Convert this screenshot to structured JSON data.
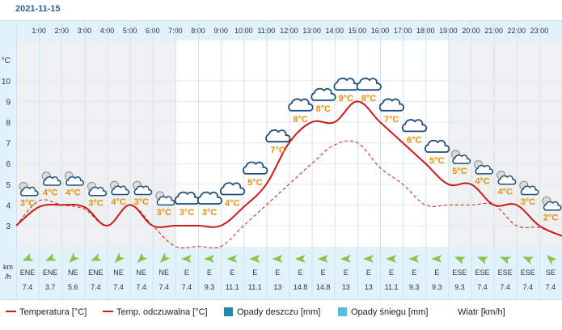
{
  "date": "2021-11-15",
  "units": {
    "temp": "°C",
    "wind": "km\n/h"
  },
  "colors": {
    "temp_line": "#cc1a1a",
    "feels_line": "#cc1a1a",
    "temp_label": "#e8900a",
    "rain": "#1a8ab8",
    "snow": "#58bfd8",
    "wind_arrow": "#8bc34a",
    "night_bg": "#eef0f2"
  },
  "chart_data": {
    "type": "line",
    "hours": [
      "1:00",
      "2:00",
      "3:00",
      "4:00",
      "5:00",
      "6:00",
      "7:00",
      "8:00",
      "9:00",
      "10:00",
      "11:00",
      "12:00",
      "13:00",
      "14:00",
      "15:00",
      "16:00",
      "17:00",
      "18:00",
      "19:00",
      "20:00",
      "21:00",
      "22:00",
      "23:00"
    ],
    "y_ticks": [
      3,
      4,
      5,
      6,
      7,
      8,
      9,
      10
    ],
    "ylim": [
      2,
      11
    ],
    "series": [
      {
        "name": "Temperatura [°C]",
        "x": [
          0,
          1,
          2,
          3,
          4,
          5,
          6,
          7,
          8,
          9,
          10,
          11,
          12,
          13,
          14,
          15,
          16,
          17,
          18,
          19,
          20,
          21,
          22,
          23,
          24
        ],
        "values": [
          3,
          3.9,
          4,
          3.9,
          3,
          4,
          3,
          3,
          3,
          3,
          3.9,
          5,
          7,
          8,
          8,
          9,
          8,
          7,
          6,
          5,
          5,
          4,
          4,
          3,
          2.5
        ]
      },
      {
        "name": "Temp. odczuwalna [°C]",
        "x": [
          0,
          1,
          2,
          3,
          4,
          5,
          6,
          7,
          8,
          9,
          10,
          11,
          12,
          13,
          14,
          15,
          16,
          17,
          18,
          19,
          20,
          21,
          22,
          23,
          24
        ],
        "values": [
          3,
          4.2,
          4,
          3.8,
          3,
          4,
          3,
          2,
          2,
          2,
          3,
          4,
          5,
          6,
          6.9,
          7,
          5.8,
          5,
          4,
          4,
          4,
          4,
          3,
          2.9,
          2.5
        ]
      }
    ],
    "temp_labels": [
      {
        "x": 0.5,
        "text": "3°C"
      },
      {
        "x": 1.5,
        "text": "4°C"
      },
      {
        "x": 2.5,
        "text": "4°C"
      },
      {
        "x": 3.5,
        "text": "3°C"
      },
      {
        "x": 4.5,
        "text": "4°C"
      },
      {
        "x": 5.5,
        "text": "3°C"
      },
      {
        "x": 6.5,
        "text": "3°C"
      },
      {
        "x": 7.5,
        "text": "3°C"
      },
      {
        "x": 8.5,
        "text": "3°C"
      },
      {
        "x": 9.5,
        "text": "4°C"
      },
      {
        "x": 10.5,
        "text": "5°C"
      },
      {
        "x": 11.5,
        "text": "7°C"
      },
      {
        "x": 12.5,
        "text": "8°C"
      },
      {
        "x": 13.5,
        "text": "8°C"
      },
      {
        "x": 14.5,
        "text": "9°C"
      },
      {
        "x": 15.5,
        "text": "8°C"
      },
      {
        "x": 16.5,
        "text": "7°C"
      },
      {
        "x": 17.5,
        "text": "6°C"
      },
      {
        "x": 18.5,
        "text": "5°C"
      },
      {
        "x": 19.5,
        "text": "5°C"
      },
      {
        "x": 20.5,
        "text": "4°C"
      },
      {
        "x": 21.5,
        "text": "4°C"
      },
      {
        "x": 22.5,
        "text": "3°C"
      },
      {
        "x": 23.5,
        "text": "2°C"
      }
    ],
    "weather_icons": [
      "night-partly-cloudy",
      "night-partly-cloudy",
      "night-partly-cloudy",
      "night-partly-cloudy",
      "night-partly-cloudy",
      "night-partly-cloudy",
      "night-partly-cloudy",
      "cloudy",
      "cloudy",
      "cloudy",
      "cloudy",
      "cloudy",
      "cloudy",
      "cloudy",
      "cloudy",
      "cloudy",
      "cloudy",
      "cloudy",
      "cloudy",
      "night-partly-cloudy",
      "night-partly-cloudy",
      "night-partly-cloudy",
      "night-partly-cloudy",
      "night-partly-cloudy"
    ],
    "night_columns": [
      0,
      1,
      2,
      3,
      4,
      5,
      6,
      19,
      20,
      21,
      22,
      23
    ],
    "wind_dir": [
      "ENE",
      "ENE",
      "NE",
      "ENE",
      "NE",
      "NE",
      "NE",
      "E",
      "E",
      "E",
      "E",
      "E",
      "E",
      "E",
      "E",
      "E",
      "E",
      "E",
      "E",
      "ESE",
      "ESE",
      "ESE",
      "ESE",
      "SE"
    ],
    "wind_speed": [
      "7.4",
      "3.7",
      "5.6",
      "7.4",
      "7.4",
      "7.4",
      "7.4",
      "7.4",
      "9.3",
      "11.1",
      "11.1",
      "13",
      "14.8",
      "14.8",
      "13",
      "13",
      "11.1",
      "9.3",
      "9.3",
      "9.3",
      "7.4",
      "7.4",
      "7.4",
      "7.4"
    ],
    "legend": [
      "Temperatura [°C]",
      "Temp. odczuwalna [°C]",
      "Opady deszczu [mm]",
      "Opady śniegu [mm]",
      "Wiatr [km/h]"
    ]
  }
}
